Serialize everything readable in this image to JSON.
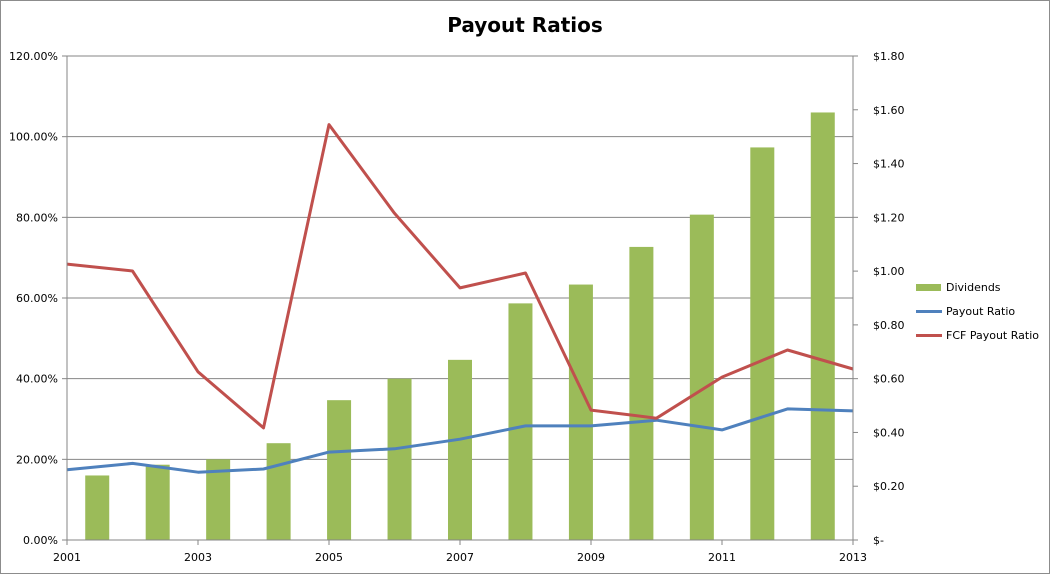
{
  "chart_data": {
    "type": "bar+line",
    "title": "Payout Ratios",
    "xlabel": "",
    "ylabel_left": "",
    "ylabel_right": "",
    "categories": [
      "2001",
      "2002",
      "2003",
      "2004",
      "2005",
      "2006",
      "2007",
      "2008",
      "2009",
      "2010",
      "2011",
      "2012",
      "2013"
    ],
    "x_tick_labels": [
      "2001",
      "2003",
      "2005",
      "2007",
      "2009",
      "2011",
      "2013"
    ],
    "left_axis": {
      "ylim": [
        0,
        1.2
      ],
      "ticks": [
        "0.00%",
        "20.00%",
        "40.00%",
        "60.00%",
        "80.00%",
        "100.00%",
        "120.00%"
      ]
    },
    "right_axis": {
      "ylim": [
        0,
        1.8
      ],
      "ticks": [
        "$-",
        "$0.20",
        "$0.40",
        "$0.60",
        "$0.80",
        "$1.00",
        "$1.20",
        "$1.40",
        "$1.60",
        "$1.80"
      ]
    },
    "grid": true,
    "legend_position": "right",
    "series": [
      {
        "name": "Dividends",
        "type": "bar",
        "axis": "right",
        "color": "#9bbb59",
        "values": [
          0.24,
          0.28,
          0.3,
          0.36,
          0.52,
          0.6,
          0.67,
          0.88,
          0.95,
          1.09,
          1.21,
          1.46,
          1.59
        ]
      },
      {
        "name": "Payout Ratio",
        "type": "line",
        "axis": "left",
        "color": "#4f81bd",
        "values": [
          0.174,
          0.19,
          0.168,
          0.176,
          0.218,
          0.226,
          0.25,
          0.283,
          0.283,
          0.297,
          0.273,
          0.325,
          0.32
        ]
      },
      {
        "name": "FCF Payout Ratio",
        "type": "line",
        "axis": "left",
        "color": "#c0504d",
        "values": [
          0.684,
          0.667,
          0.417,
          0.278,
          1.03,
          0.81,
          0.625,
          0.662,
          0.322,
          0.302,
          0.404,
          0.471,
          0.424
        ]
      }
    ]
  },
  "legend": {
    "items": [
      {
        "label": "Dividends",
        "color": "#9bbb59",
        "kind": "bar"
      },
      {
        "label": "Payout Ratio",
        "color": "#4f81bd",
        "kind": "line"
      },
      {
        "label": "FCF Payout Ratio",
        "color": "#c0504d",
        "kind": "line"
      }
    ]
  }
}
